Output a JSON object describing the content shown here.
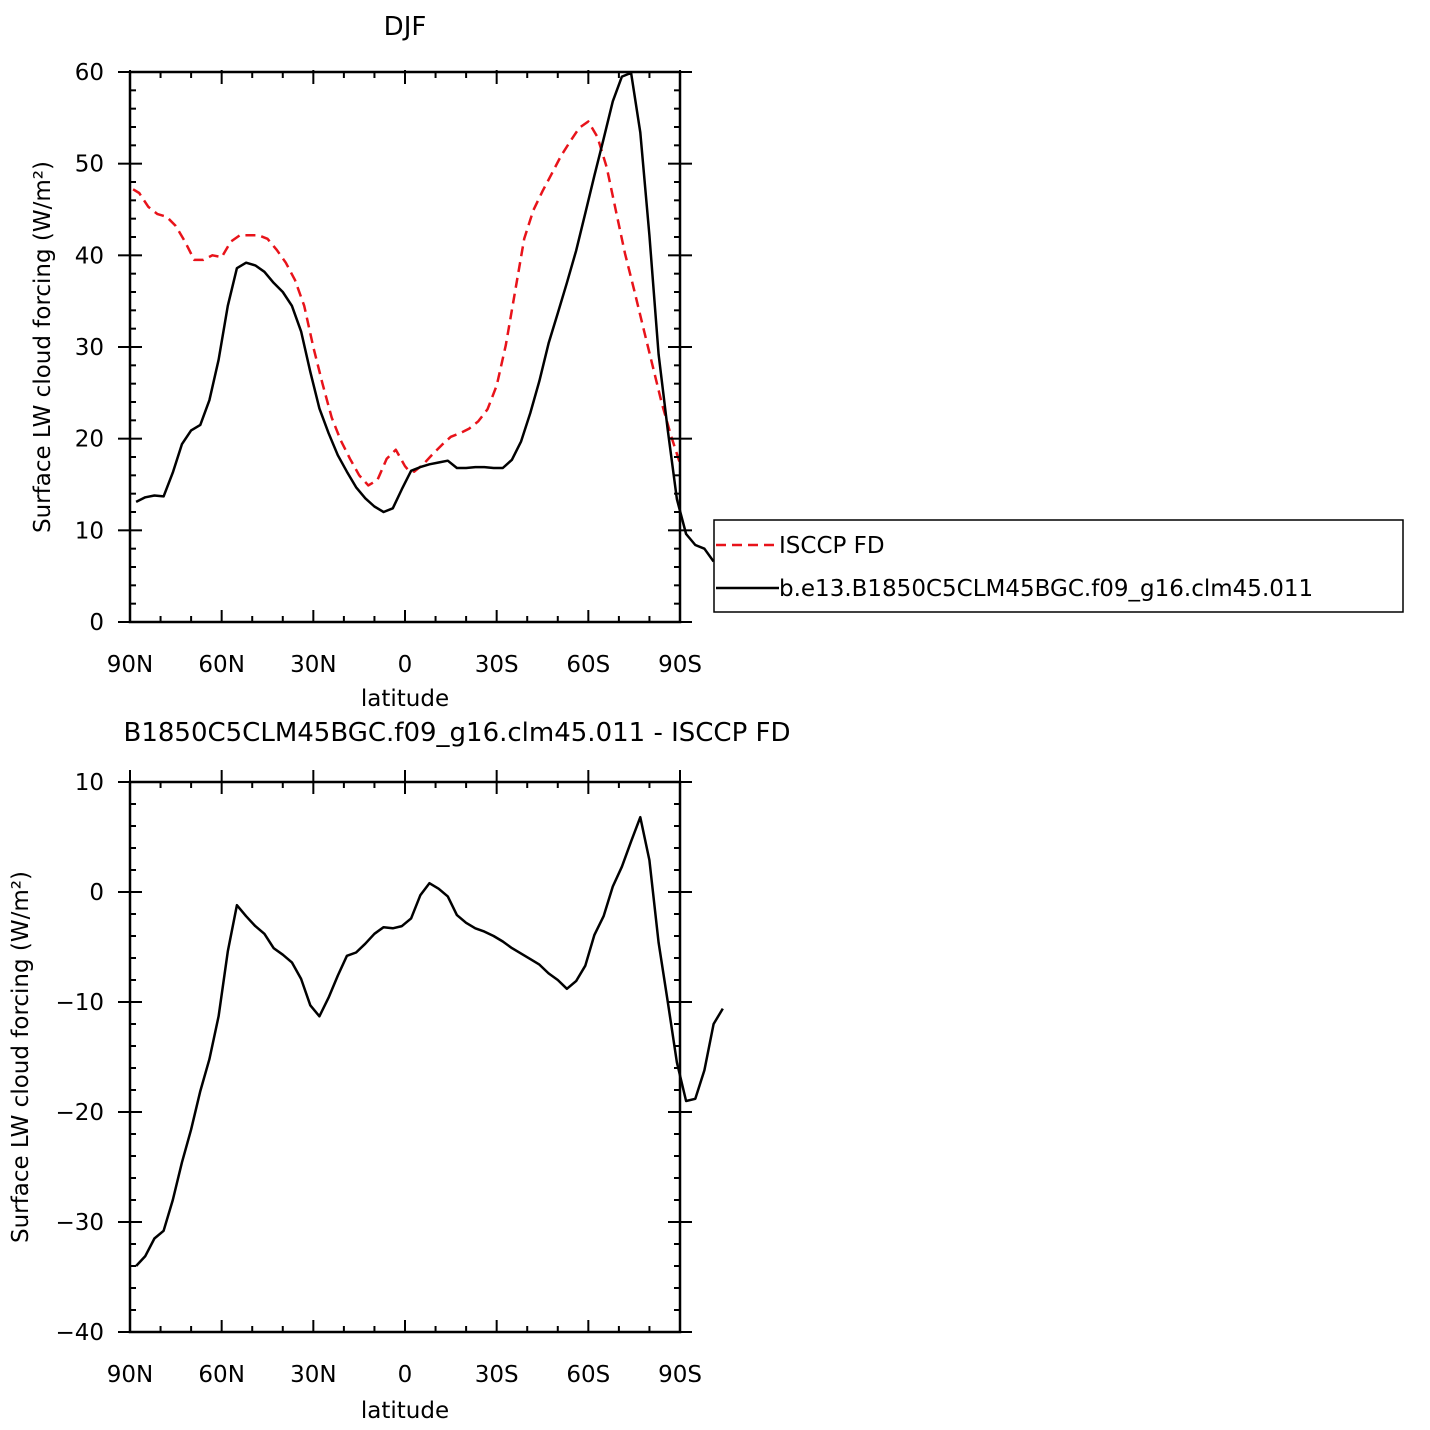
{
  "chart_data": [
    {
      "type": "line",
      "title": "DJF",
      "xlabel": "latitude",
      "ylabel": "Surface LW cloud forcing (W/m²)",
      "xlim": [
        -90,
        90
      ],
      "ylim": [
        0,
        60
      ],
      "x_ticks": [
        -90,
        -60,
        -30,
        0,
        30,
        60,
        90
      ],
      "x_tick_labels": [
        "90N",
        "60N",
        "30N",
        "0",
        "30S",
        "60S",
        "90S"
      ],
      "y_ticks": [
        0,
        10,
        20,
        30,
        40,
        50,
        60
      ],
      "y_tick_labels": [
        "0",
        "10",
        "20",
        "30",
        "40",
        "50",
        "60"
      ],
      "grid": false,
      "legend_position": "right",
      "series": [
        {
          "name": "ISCCP FD",
          "color": "#e8131a",
          "dash": "dashed",
          "points": [
            [
              -89,
              47.2
            ],
            [
              -87,
              46.8
            ],
            [
              -84,
              45.3
            ],
            [
              -81,
              44.5
            ],
            [
              -78,
              44.2
            ],
            [
              -75,
              43.2
            ],
            [
              -72,
              41.5
            ],
            [
              -69,
              39.5
            ],
            [
              -66,
              39.5
            ],
            [
              -63,
              40.0
            ],
            [
              -60,
              39.8
            ],
            [
              -57,
              41.5
            ],
            [
              -54,
              42.2
            ],
            [
              -51,
              42.2
            ],
            [
              -48,
              42.2
            ],
            [
              -45,
              41.8
            ],
            [
              -42,
              40.6
            ],
            [
              -39,
              39.2
            ],
            [
              -36,
              37.3
            ],
            [
              -33,
              34.5
            ],
            [
              -30,
              30.0
            ],
            [
              -27,
              26.0
            ],
            [
              -24,
              22.3
            ],
            [
              -21,
              19.8
            ],
            [
              -18,
              17.8
            ],
            [
              -15,
              16.0
            ],
            [
              -12,
              14.9
            ],
            [
              -9,
              15.5
            ],
            [
              -6,
              17.8
            ],
            [
              -3,
              18.8
            ],
            [
              0,
              17.0
            ],
            [
              1,
              16.6
            ],
            [
              3,
              16.4
            ],
            [
              6,
              17.2
            ],
            [
              9,
              18.3
            ],
            [
              12,
              19.3
            ],
            [
              15,
              20.2
            ],
            [
              18,
              20.6
            ],
            [
              21,
              21.1
            ],
            [
              24,
              21.9
            ],
            [
              27,
              23.2
            ],
            [
              30,
              25.8
            ],
            [
              33,
              30.2
            ],
            [
              36,
              36.0
            ],
            [
              39,
              41.8
            ],
            [
              42,
              44.9
            ],
            [
              45,
              47.0
            ],
            [
              48,
              48.9
            ],
            [
              51,
              50.8
            ],
            [
              54,
              52.4
            ],
            [
              57,
              53.9
            ],
            [
              60,
              54.6
            ],
            [
              63,
              52.9
            ],
            [
              66,
              49.6
            ],
            [
              69,
              44.9
            ],
            [
              72,
              40.2
            ],
            [
              75,
              36.2
            ],
            [
              78,
              32.1
            ],
            [
              81,
              28.0
            ],
            [
              84,
              23.9
            ],
            [
              87,
              20.4
            ],
            [
              90,
              17.3
            ]
          ]
        },
        {
          "name": "b.e13.B1850C5CLM45BGC.f09_g16.clm45.011",
          "color": "#000000",
          "dash": "solid",
          "points": [
            [
              -88,
              13.1
            ],
            [
              -85,
              13.6
            ],
            [
              -82,
              13.8
            ],
            [
              -79,
              13.7
            ],
            [
              -76,
              16.3
            ],
            [
              -73,
              19.4
            ],
            [
              -70,
              20.9
            ],
            [
              -67,
              21.5
            ],
            [
              -64,
              24.2
            ],
            [
              -61,
              28.6
            ],
            [
              -58,
              34.5
            ],
            [
              -55,
              38.6
            ],
            [
              -52,
              39.2
            ],
            [
              -49,
              38.9
            ],
            [
              -46,
              38.2
            ],
            [
              -43,
              37.0
            ],
            [
              -40,
              36.0
            ],
            [
              -37,
              34.5
            ],
            [
              -34,
              31.7
            ],
            [
              -31,
              27.3
            ],
            [
              -28,
              23.3
            ],
            [
              -25,
              20.6
            ],
            [
              -22,
              18.2
            ],
            [
              -19,
              16.4
            ],
            [
              -16,
              14.7
            ],
            [
              -13,
              13.5
            ],
            [
              -10,
              12.6
            ],
            [
              -7,
              12.0
            ],
            [
              -4,
              12.4
            ],
            [
              -1,
              14.5
            ],
            [
              2,
              16.5
            ],
            [
              5,
              16.9
            ],
            [
              8,
              17.2
            ],
            [
              11,
              17.4
            ],
            [
              14,
              17.6
            ],
            [
              17,
              16.8
            ],
            [
              20,
              16.8
            ],
            [
              23,
              16.9
            ],
            [
              26,
              16.9
            ],
            [
              29,
              16.8
            ],
            [
              32,
              16.8
            ],
            [
              35,
              17.7
            ],
            [
              38,
              19.7
            ],
            [
              41,
              22.8
            ],
            [
              44,
              26.3
            ],
            [
              47,
              30.4
            ],
            [
              50,
              33.7
            ],
            [
              53,
              37.0
            ],
            [
              56,
              40.5
            ],
            [
              59,
              44.6
            ],
            [
              62,
              48.7
            ],
            [
              65,
              52.7
            ],
            [
              68,
              56.8
            ],
            [
              71,
              59.5
            ],
            [
              74,
              59.9
            ],
            [
              77,
              53.4
            ],
            [
              80,
              42.2
            ],
            [
              83,
              29.2
            ],
            [
              86,
              20.9
            ],
            [
              89,
              13.4
            ],
            [
              92,
              9.6
            ],
            [
              95,
              8.4
            ],
            [
              98,
              8.0
            ],
            [
              101,
              6.6
            ]
          ]
        }
      ]
    },
    {
      "type": "line",
      "title": "B1850C5CLM45BGC.f09_g16.clm45.011 - ISCCP FD",
      "xlabel": "latitude",
      "ylabel": "Surface LW cloud forcing (W/m²)",
      "xlim": [
        -90,
        90
      ],
      "ylim": [
        -40,
        10
      ],
      "x_ticks": [
        -90,
        -60,
        -30,
        0,
        30,
        60,
        90
      ],
      "x_tick_labels": [
        "90N",
        "60N",
        "30N",
        "0",
        "30S",
        "60S",
        "90S"
      ],
      "y_ticks": [
        -40,
        -30,
        -20,
        -10,
        0,
        10
      ],
      "y_tick_labels": [
        "−40",
        "−30",
        "−20",
        "−10",
        "0",
        "10"
      ],
      "grid": false,
      "series": [
        {
          "color": "#000000",
          "dash": "solid",
          "points": [
            [
              -88,
              -34.0
            ],
            [
              -85,
              -33.1
            ],
            [
              -82,
              -31.5
            ],
            [
              -79,
              -30.8
            ],
            [
              -76,
              -28.0
            ],
            [
              -73,
              -24.6
            ],
            [
              -70,
              -21.6
            ],
            [
              -67,
              -18.1
            ],
            [
              -64,
              -15.2
            ],
            [
              -61,
              -11.3
            ],
            [
              -58,
              -5.4
            ],
            [
              -55,
              -1.2
            ],
            [
              -52,
              -2.2
            ],
            [
              -49,
              -3.1
            ],
            [
              -46,
              -3.8
            ],
            [
              -43,
              -5.1
            ],
            [
              -40,
              -5.7
            ],
            [
              -37,
              -6.4
            ],
            [
              -34,
              -7.9
            ],
            [
              -31,
              -10.3
            ],
            [
              -28,
              -11.3
            ],
            [
              -25,
              -9.6
            ],
            [
              -22,
              -7.6
            ],
            [
              -19,
              -5.8
            ],
            [
              -16,
              -5.5
            ],
            [
              -13,
              -4.7
            ],
            [
              -10,
              -3.8
            ],
            [
              -7,
              -3.2
            ],
            [
              -4,
              -3.3
            ],
            [
              -1,
              -3.1
            ],
            [
              2,
              -2.4
            ],
            [
              5,
              -0.3
            ],
            [
              8,
              0.8
            ],
            [
              11,
              0.3
            ],
            [
              14,
              -0.4
            ],
            [
              17,
              -2.1
            ],
            [
              20,
              -2.8
            ],
            [
              23,
              -3.3
            ],
            [
              26,
              -3.6
            ],
            [
              29,
              -4.0
            ],
            [
              32,
              -4.5
            ],
            [
              35,
              -5.1
            ],
            [
              38,
              -5.6
            ],
            [
              41,
              -6.1
            ],
            [
              44,
              -6.6
            ],
            [
              47,
              -7.4
            ],
            [
              50,
              -8.0
            ],
            [
              53,
              -8.8
            ],
            [
              56,
              -8.1
            ],
            [
              59,
              -6.7
            ],
            [
              62,
              -3.9
            ],
            [
              65,
              -2.2
            ],
            [
              68,
              0.5
            ],
            [
              71,
              2.3
            ],
            [
              74,
              4.6
            ],
            [
              77,
              6.8
            ],
            [
              80,
              2.9
            ],
            [
              83,
              -4.6
            ],
            [
              86,
              -10.0
            ],
            [
              89,
              -15.5
            ],
            [
              92,
              -19.0
            ],
            [
              95,
              -18.8
            ],
            [
              98,
              -16.2
            ],
            [
              101,
              -12.0
            ],
            [
              104,
              -10.6
            ]
          ]
        }
      ]
    }
  ]
}
